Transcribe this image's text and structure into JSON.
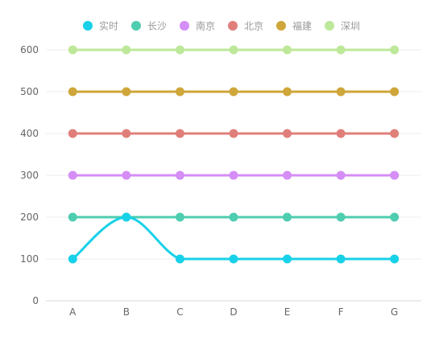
{
  "chart_data": {
    "type": "line",
    "categories": [
      "A",
      "B",
      "C",
      "D",
      "E",
      "F",
      "G"
    ],
    "ylim": [
      0,
      600
    ],
    "yticks": [
      0,
      100,
      200,
      300,
      400,
      500,
      600
    ],
    "grid": "horizontal",
    "legend_placement": "top-center",
    "series": [
      {
        "name": "实时",
        "values": [
          100,
          200,
          100,
          100,
          100,
          100,
          100
        ],
        "color": "#18d1e8",
        "smooth": true
      },
      {
        "name": "长沙",
        "values": [
          200,
          200,
          200,
          200,
          200,
          200,
          200
        ],
        "color": "#4ecdb0"
      },
      {
        "name": "南京",
        "values": [
          300,
          300,
          300,
          300,
          300,
          300,
          300
        ],
        "color": "#d48ef5"
      },
      {
        "name": "北京",
        "values": [
          400,
          400,
          400,
          400,
          400,
          400,
          400
        ],
        "color": "#e07f7a"
      },
      {
        "name": "福建",
        "values": [
          500,
          500,
          500,
          500,
          500,
          500,
          500
        ],
        "color": "#cfa63a"
      },
      {
        "name": "深圳",
        "values": [
          600,
          600,
          600,
          600,
          600,
          600,
          600
        ],
        "color": "#bde89a"
      }
    ]
  }
}
